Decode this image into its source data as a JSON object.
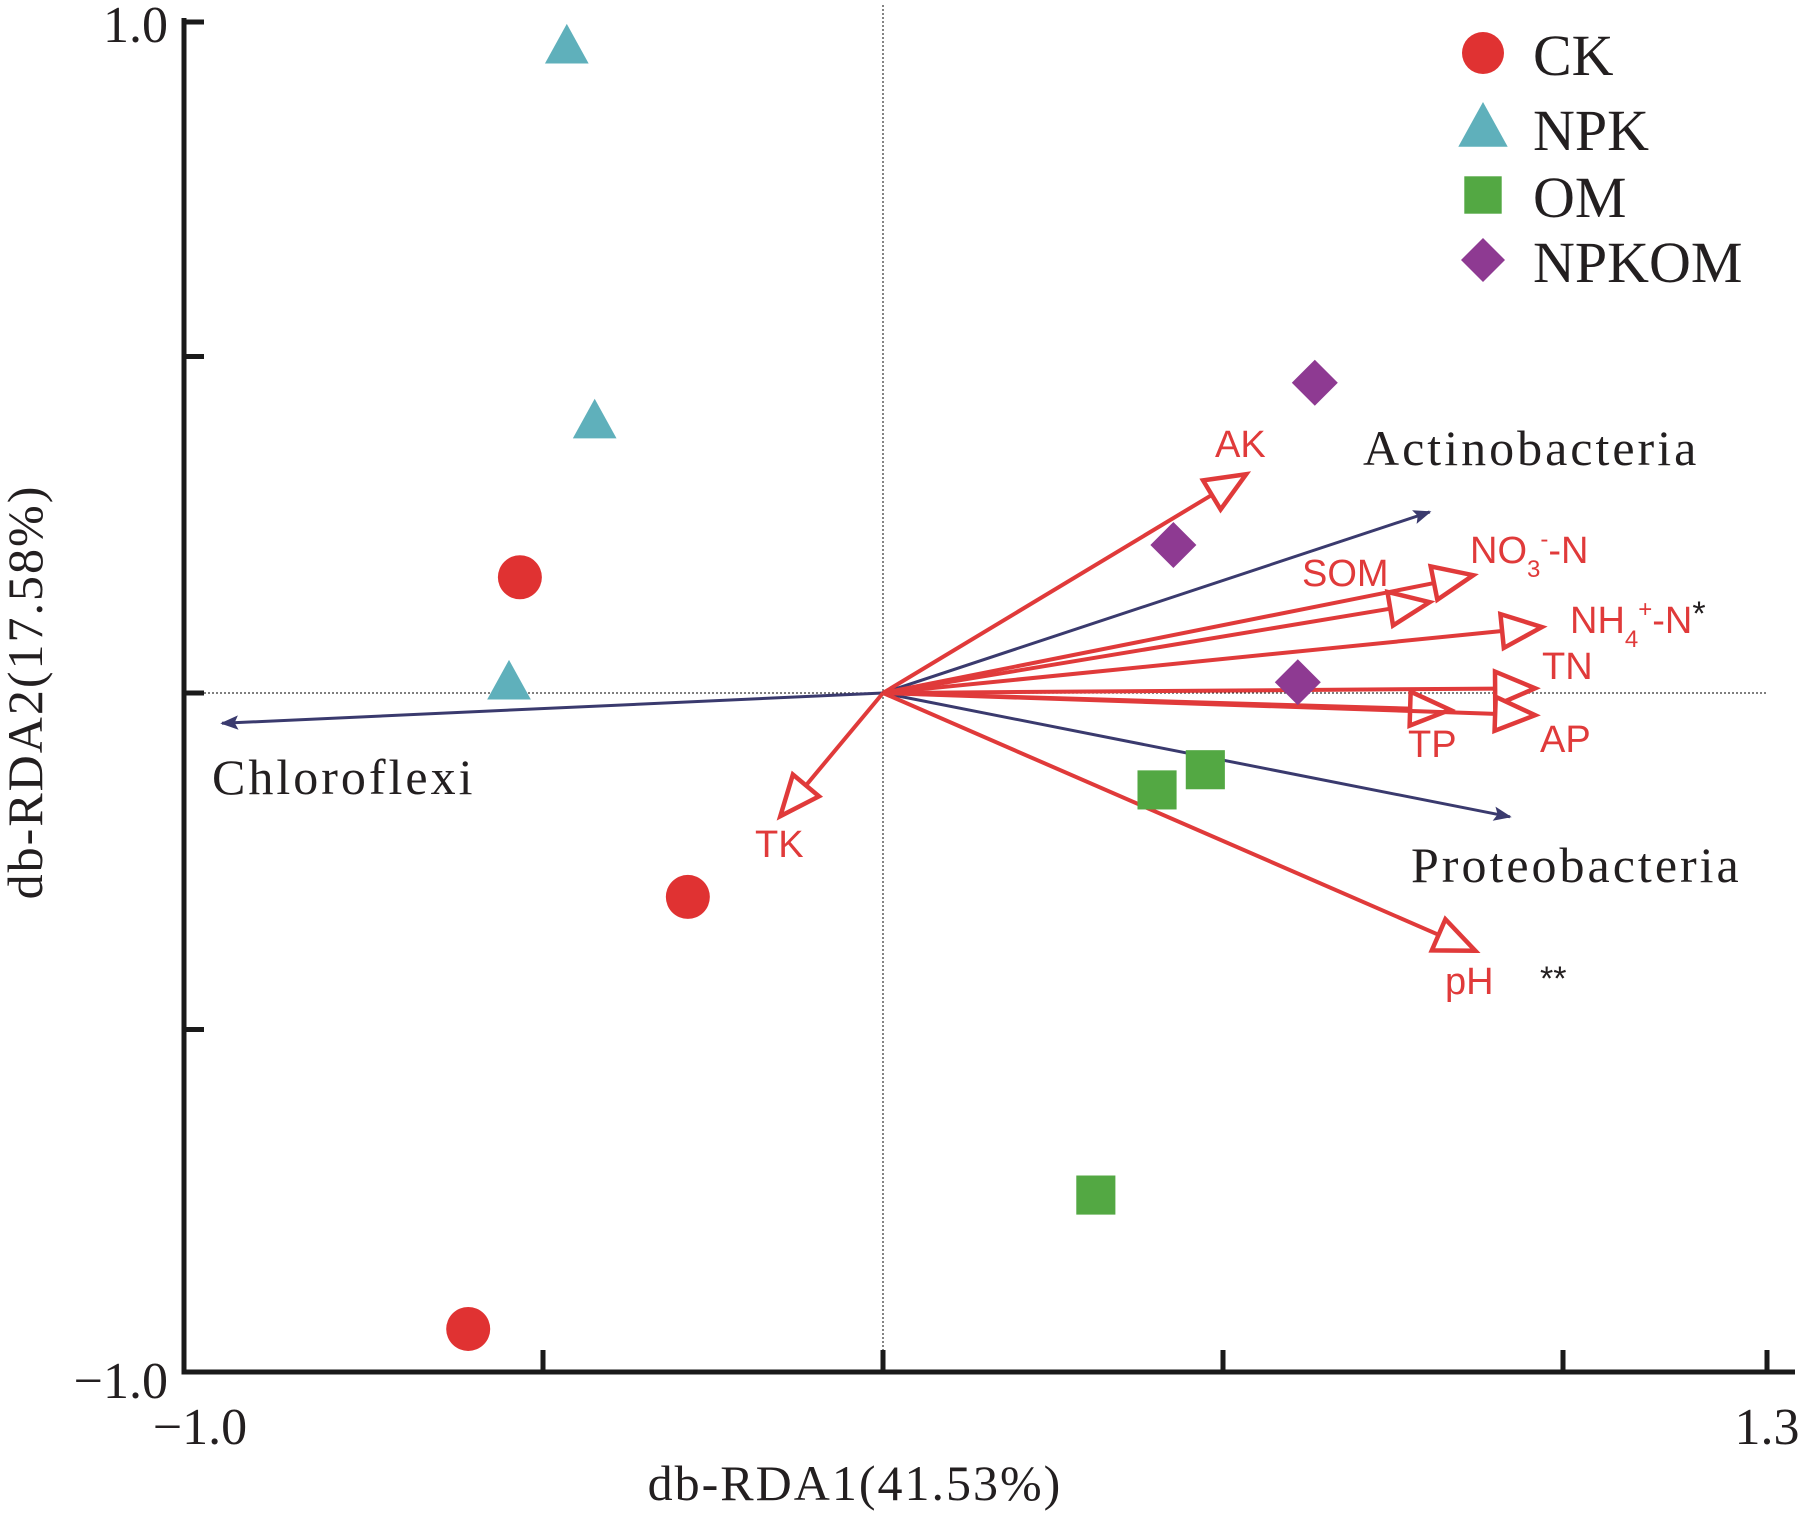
{
  "chart_data": {
    "type": "scatter",
    "subtype": "db-RDA biplot",
    "title": "",
    "xlabel": "db-RDA1(41.53%)",
    "ylabel": "db-RDA2(17.58%)",
    "xlim": [
      -1.0,
      1.3
    ],
    "ylim": [
      -1.0,
      1.0
    ],
    "x_tick_labels": [
      {
        "value": -1.0,
        "label": "−1.0"
      },
      {
        "value": 1.3,
        "label": "1.3"
      }
    ],
    "x_ticks": [
      -0.5,
      0.0,
      0.5,
      1.0,
      1.3
    ],
    "y_tick_labels": [
      {
        "value": 1.0,
        "label": "1.0"
      },
      {
        "value": -1.0,
        "label": "−1.0"
      }
    ],
    "y_ticks": [
      1.0,
      0.5,
      0.0,
      -0.5
    ],
    "zero_lines": true,
    "grid": false,
    "legend_position": "top-right",
    "series": [
      {
        "name": "CK",
        "marker": "circle",
        "color": "#e03232",
        "points": [
          [
            -0.534,
            0.172
          ],
          [
            -0.287,
            -0.303
          ],
          [
            -0.61,
            -0.945
          ]
        ]
      },
      {
        "name": "NPK",
        "marker": "triangle",
        "color": "#5fb0bb",
        "points": [
          [
            -0.465,
            0.96
          ],
          [
            -0.424,
            0.403
          ],
          [
            -0.55,
            0.015
          ]
        ]
      },
      {
        "name": "OM",
        "marker": "square",
        "color": "#53a843",
        "points": [
          [
            0.403,
            -0.144
          ],
          [
            0.474,
            -0.114
          ],
          [
            0.313,
            -0.746
          ]
        ]
      },
      {
        "name": "NPKOM",
        "marker": "diamond",
        "color": "#8e3a92",
        "points": [
          [
            0.635,
            0.461
          ],
          [
            0.427,
            0.22
          ],
          [
            0.61,
            0.016
          ]
        ]
      }
    ],
    "env_vectors": {
      "color": "#e03a3a",
      "items": [
        {
          "name": "AK",
          "label": "AK",
          "sub": "",
          "sup": "",
          "suffix": "",
          "sig": "",
          "x": 0.534,
          "y": 0.325
        },
        {
          "name": "NO3-N",
          "label": "NO",
          "sub": "3",
          "sup": "-",
          "suffix": "-N",
          "sig": "",
          "x": 0.868,
          "y": 0.175
        },
        {
          "name": "SOM",
          "label": "SOM",
          "sub": "",
          "sup": "",
          "suffix": "",
          "sig": "",
          "x": 0.804,
          "y": 0.135
        },
        {
          "name": "NH4-N",
          "label": "NH",
          "sub": "4",
          "sup": "+",
          "suffix": "-N",
          "sig": "*",
          "x": 0.969,
          "y": 0.098
        },
        {
          "name": "TN",
          "label": "TN",
          "sub": "",
          "sup": "",
          "suffix": "",
          "sig": "",
          "x": 0.959,
          "y": 0.007
        },
        {
          "name": "TP",
          "label": "TP",
          "sub": "",
          "sup": "",
          "suffix": "",
          "sig": "",
          "x": 0.834,
          "y": -0.025
        },
        {
          "name": "AP",
          "label": "AP",
          "sub": "",
          "sup": "",
          "suffix": "",
          "sig": "",
          "x": 0.959,
          "y": -0.033
        },
        {
          "name": "pH",
          "label": "pH",
          "sub": "",
          "sup": "",
          "suffix": "",
          "sig": "**",
          "x": 0.871,
          "y": -0.383
        },
        {
          "name": "TK",
          "label": "TK",
          "sub": "",
          "sup": "",
          "suffix": "",
          "sig": "",
          "x": -0.151,
          "y": -0.183
        }
      ]
    },
    "taxa_vectors": {
      "color": "#3a3a6e",
      "items": [
        {
          "name": "Actinobacteria",
          "label": "Actinobacteria",
          "x": 0.804,
          "y": 0.269
        },
        {
          "name": "Proteobacteria",
          "label": "Proteobacteria",
          "x": 0.922,
          "y": -0.184
        },
        {
          "name": "Chloroflexi",
          "label": "Chloroflexi",
          "x": -0.972,
          "y": -0.045
        }
      ]
    }
  }
}
